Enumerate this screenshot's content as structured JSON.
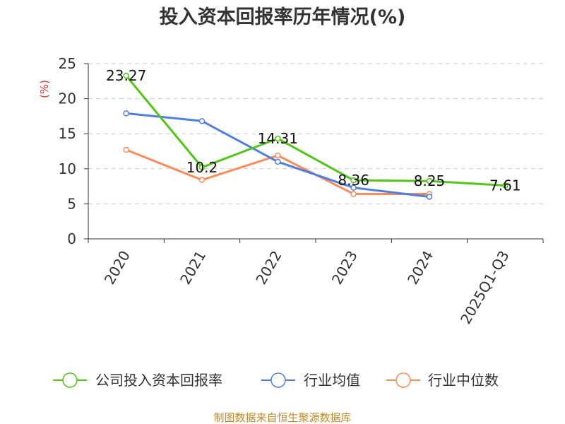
{
  "colors": {
    "company": "#52c41a",
    "industry_avg": "#4f7ee0",
    "industry_median": "#fa8c5a",
    "unit": "#e03030",
    "source": "#c08a2a"
  },
  "chart_data": {
    "type": "line",
    "title": "投入资本回报率历年情况(%)",
    "ylabel": "(%)",
    "xlabel": "",
    "categories": [
      "2020",
      "2021",
      "2022",
      "2023",
      "2024",
      "2025Q1-Q3"
    ],
    "ylim": [
      0,
      25
    ],
    "yticks": [
      0,
      5,
      10,
      15,
      20,
      25
    ],
    "grid": true,
    "legend_position": "bottom",
    "series": [
      {
        "name": "公司投入资本回报率",
        "color": "#52c41a",
        "values": [
          23.27,
          10.2,
          14.31,
          8.36,
          8.25,
          7.61
        ],
        "labels": [
          "23.27",
          "10.2",
          "14.31",
          "8.36",
          "8.25",
          "7.61"
        ]
      },
      {
        "name": "行业均值",
        "color": "#4f7ee0",
        "values": [
          17.9,
          16.8,
          11.0,
          7.3,
          6.0,
          null
        ]
      },
      {
        "name": "行业中位数",
        "color": "#fa8c5a",
        "values": [
          12.7,
          8.4,
          11.9,
          6.4,
          6.4,
          null
        ]
      }
    ]
  },
  "footer": {
    "source": "制图数据来自恒生聚源数据库"
  }
}
